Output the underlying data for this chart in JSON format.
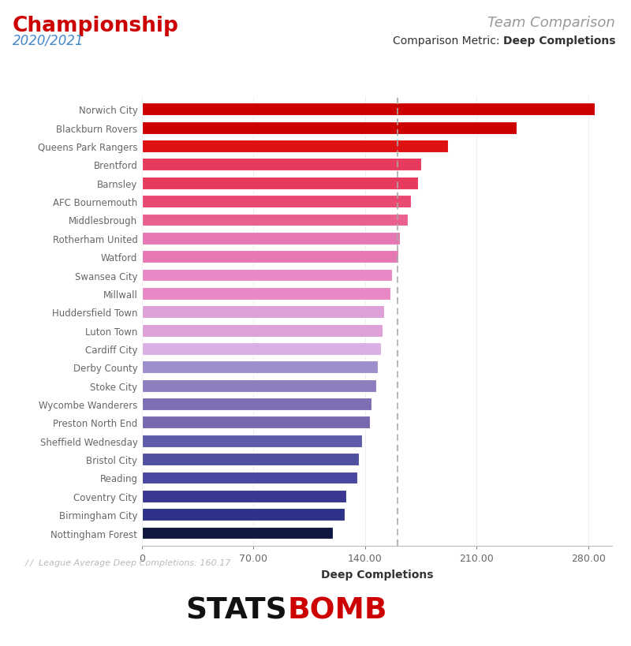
{
  "title_left": "Championship",
  "subtitle_left": "2020/2021",
  "title_right": "Team Comparison",
  "subtitle_right_plain": "Comparison Metric: ",
  "subtitle_right_bold": "Deep Completions",
  "xlabel": "Deep Completions",
  "league_avg_label": "League Average Deep Completions: 160.17",
  "league_avg": 160.17,
  "xlim": [
    0,
    295
  ],
  "xticks": [
    0,
    70,
    140,
    210,
    280
  ],
  "xtick_labels": [
    "0",
    "70.00",
    "140.00",
    "210.00",
    "280.00"
  ],
  "teams": [
    "Norwich City",
    "Blackburn Rovers",
    "Queens Park Rangers",
    "Brentford",
    "Barnsley",
    "AFC Bournemouth",
    "Middlesbrough",
    "Rotherham United",
    "Watford",
    "Swansea City",
    "Millwall",
    "Huddersfield Town",
    "Luton Town",
    "Cardiff City",
    "Derby County",
    "Stoke City",
    "Wycombe Wanderers",
    "Preston North End",
    "Sheffield Wednesday",
    "Bristol City",
    "Reading",
    "Coventry City",
    "Birmingham City",
    "Nottingham Forest"
  ],
  "values": [
    284,
    235,
    192,
    175,
    173,
    169,
    167,
    162,
    161,
    157,
    156,
    152,
    151,
    150,
    148,
    147,
    144,
    143,
    138,
    136,
    135,
    128,
    127,
    120
  ],
  "colors": [
    "#cc0000",
    "#cc0000",
    "#dd1111",
    "#e83a5e",
    "#e83a5e",
    "#e84a72",
    "#e96090",
    "#e678b4",
    "#e678b4",
    "#e888c4",
    "#e888c4",
    "#dda0d8",
    "#dda0d8",
    "#d8b0e4",
    "#9e8ecc",
    "#8e7ec0",
    "#7e6eb4",
    "#7868b0",
    "#5c5ca8",
    "#5050a0",
    "#4848a0",
    "#3a3892",
    "#2e3288",
    "#0e1840"
  ],
  "background_color": "#ffffff",
  "bar_height": 0.68,
  "title_left_color": "#cc0000",
  "subtitle_left_color": "#4488cc",
  "title_right_color": "#999999",
  "avg_line_color": "#aaaaaa",
  "statsbomb_black": "#111111",
  "statsbomb_red": "#cc0000"
}
